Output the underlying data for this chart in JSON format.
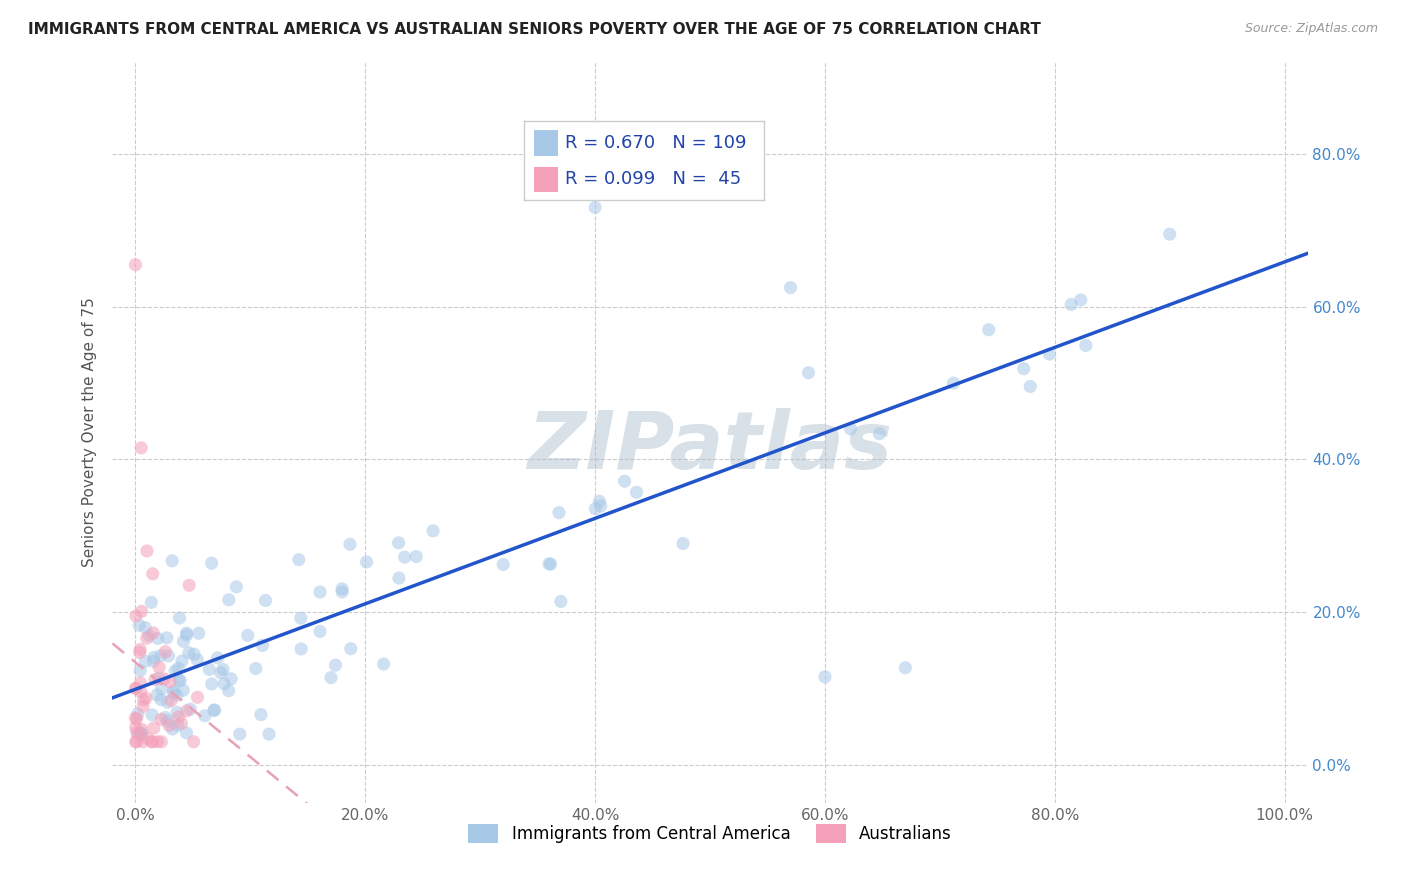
{
  "title": "IMMIGRANTS FROM CENTRAL AMERICA VS AUSTRALIAN SENIORS POVERTY OVER THE AGE OF 75 CORRELATION CHART",
  "source": "Source: ZipAtlas.com",
  "ylabel": "Seniors Poverty Over the Age of 75",
  "blue_R": 0.67,
  "blue_N": 109,
  "pink_R": 0.099,
  "pink_N": 45,
  "blue_color": "#A8C8E8",
  "pink_color": "#F4A0B8",
  "blue_line_color": "#2255CC",
  "pink_line_color": "#E8A0B8",
  "legend_blue_label": "Immigrants from Central America",
  "legend_pink_label": "Australians",
  "xlim": [
    -0.02,
    1.02
  ],
  "ylim": [
    -0.05,
    0.92
  ],
  "yticks": [
    0.0,
    0.2,
    0.4,
    0.6,
    0.8
  ],
  "ytick_labels": [
    "0.0%",
    "20.0%",
    "40.0%",
    "60.0%",
    "80.0%"
  ],
  "xticks": [
    0.0,
    0.2,
    0.4,
    0.6,
    0.8,
    1.0
  ],
  "xtick_labels": [
    "0.0%",
    "20.0%",
    "40.0%",
    "60.0%",
    "80.0%",
    "100.0%"
  ],
  "background_color": "#FFFFFF",
  "grid_color": "#CCCCCC",
  "watermark_text": "ZIPatlas",
  "watermark_color": "#AABBCC",
  "title_fontsize": 11,
  "axis_fontsize": 11,
  "tick_fontsize": 11,
  "marker_size": 90,
  "marker_alpha": 0.55,
  "blue_line_intercept": 0.1,
  "blue_line_slope": 0.555,
  "pink_line_intercept": 0.065,
  "pink_line_slope": 0.62
}
